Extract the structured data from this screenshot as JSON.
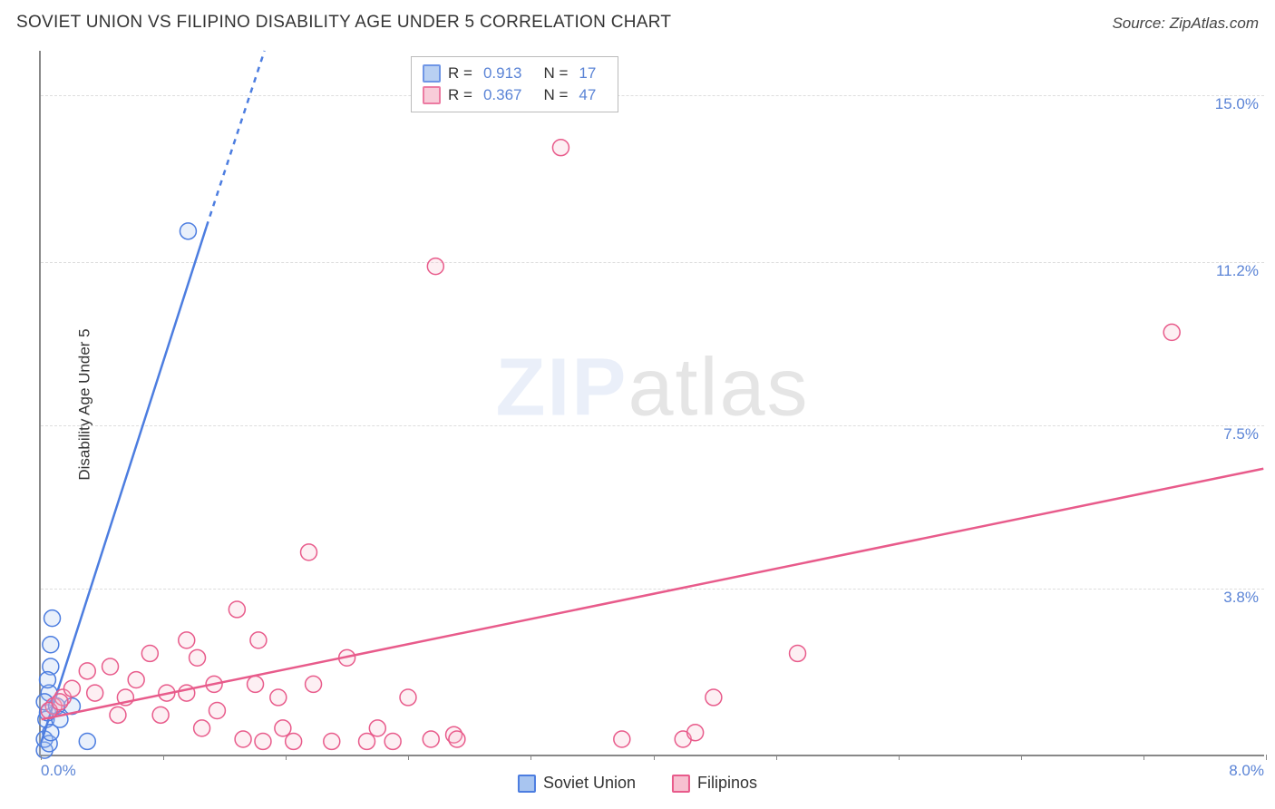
{
  "chart": {
    "type": "scatter",
    "title": "SOVIET UNION VS FILIPINO DISABILITY AGE UNDER 5 CORRELATION CHART",
    "source": "Source: ZipAtlas.com",
    "ylabel": "Disability Age Under 5",
    "xlim": [
      0.0,
      8.0
    ],
    "ylim": [
      0.0,
      16.0
    ],
    "xtick_labels": {
      "left": "0.0%",
      "right": "8.0%"
    },
    "xtick_positions": [
      0.0,
      0.8,
      1.6,
      2.4,
      3.2,
      4.0,
      4.8,
      5.6,
      6.4,
      7.2,
      8.0
    ],
    "ygrid": [
      {
        "value": 3.8,
        "label": "3.8%"
      },
      {
        "value": 7.5,
        "label": "7.5%"
      },
      {
        "value": 11.2,
        "label": "11.2%"
      },
      {
        "value": 15.0,
        "label": "15.0%"
      }
    ],
    "marker_radius": 9,
    "marker_fill_opacity": 0.25,
    "marker_stroke_width": 1.5,
    "trend_line_width": 2.5,
    "grid_color": "#dddddd",
    "axis_color": "#888888",
    "tick_label_color": "#5b84d6",
    "background_color": "#ffffff",
    "watermark": {
      "bold": "ZIP",
      "light": "atlas"
    },
    "series": [
      {
        "name": "Soviet Union",
        "stroke": "#4c7de0",
        "fill": "#a8c5f0",
        "points": [
          [
            0.02,
            0.1
          ],
          [
            0.02,
            0.35
          ],
          [
            0.03,
            0.8
          ],
          [
            0.04,
            0.95
          ],
          [
            0.05,
            0.25
          ],
          [
            0.05,
            1.4
          ],
          [
            0.06,
            2.0
          ],
          [
            0.06,
            2.5
          ],
          [
            0.07,
            3.1
          ],
          [
            0.02,
            1.2
          ],
          [
            0.04,
            1.7
          ],
          [
            0.1,
            1.1
          ],
          [
            0.3,
            0.3
          ],
          [
            0.12,
            0.8
          ],
          [
            0.2,
            1.1
          ],
          [
            0.06,
            0.5
          ],
          [
            0.96,
            11.9
          ]
        ],
        "stats": {
          "R": "0.913",
          "N": "17"
        },
        "trendline": {
          "x1": 0.0,
          "y1": 0.3,
          "x2": 1.08,
          "y2": 12.0
        },
        "trendline_dashed_ext": {
          "x1": 1.08,
          "y1": 12.0,
          "x2": 1.46,
          "y2": 16.0
        }
      },
      {
        "name": "Filipinos",
        "stroke": "#e85b8b",
        "fill": "#f7c0d0",
        "points": [
          [
            0.08,
            1.1
          ],
          [
            0.14,
            1.3
          ],
          [
            0.2,
            1.5
          ],
          [
            0.3,
            1.9
          ],
          [
            0.35,
            1.4
          ],
          [
            0.45,
            2.0
          ],
          [
            0.5,
            0.9
          ],
          [
            0.55,
            1.3
          ],
          [
            0.62,
            1.7
          ],
          [
            0.71,
            2.3
          ],
          [
            0.78,
            0.9
          ],
          [
            0.82,
            1.4
          ],
          [
            0.95,
            2.6
          ],
          [
            0.95,
            1.4
          ],
          [
            1.02,
            2.2
          ],
          [
            1.05,
            0.6
          ],
          [
            1.13,
            1.6
          ],
          [
            1.15,
            1.0
          ],
          [
            1.28,
            3.3
          ],
          [
            1.32,
            0.35
          ],
          [
            1.4,
            1.6
          ],
          [
            1.42,
            2.6
          ],
          [
            1.45,
            0.3
          ],
          [
            1.55,
            1.3
          ],
          [
            1.58,
            0.6
          ],
          [
            1.65,
            0.3
          ],
          [
            1.75,
            4.6
          ],
          [
            1.78,
            1.6
          ],
          [
            1.9,
            0.3
          ],
          [
            2.0,
            2.2
          ],
          [
            2.13,
            0.3
          ],
          [
            2.2,
            0.6
          ],
          [
            2.3,
            0.3
          ],
          [
            2.4,
            1.3
          ],
          [
            2.55,
            0.35
          ],
          [
            2.58,
            11.1
          ],
          [
            2.7,
            0.45
          ],
          [
            2.72,
            0.35
          ],
          [
            3.4,
            13.8
          ],
          [
            3.8,
            0.35
          ],
          [
            4.2,
            0.35
          ],
          [
            4.28,
            0.5
          ],
          [
            4.4,
            1.3
          ],
          [
            4.95,
            2.3
          ],
          [
            7.4,
            9.6
          ],
          [
            0.05,
            1.0
          ],
          [
            0.12,
            1.2
          ]
        ],
        "stats": {
          "R": "0.367",
          "N": "47"
        },
        "trendline": {
          "x1": 0.0,
          "y1": 0.8,
          "x2": 8.0,
          "y2": 6.5
        }
      }
    ]
  },
  "legend_bottom": [
    {
      "label": "Soviet Union",
      "stroke": "#4c7de0",
      "fill": "#a8c5f0"
    },
    {
      "label": "Filipinos",
      "stroke": "#e85b8b",
      "fill": "#f7c0d0"
    }
  ]
}
